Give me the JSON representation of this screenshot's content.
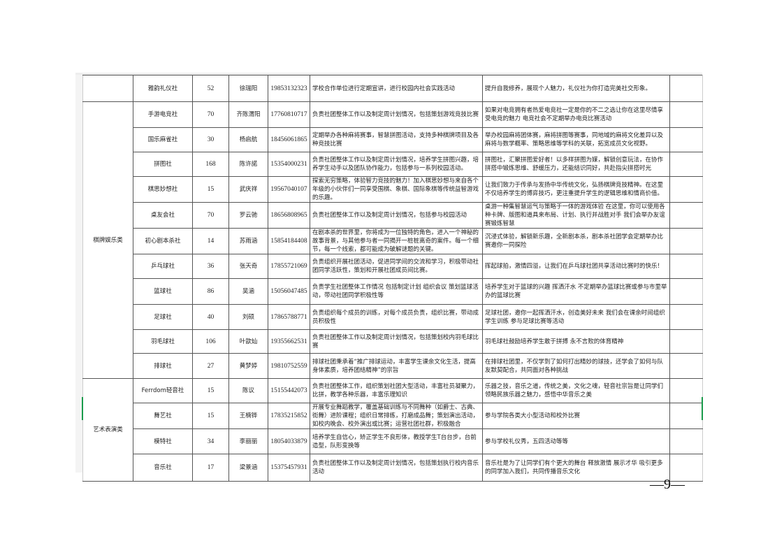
{
  "categories": [
    "",
    "棋牌娱乐类",
    "艺术表演类"
  ],
  "rows": [
    {
      "name": "雅韵礼仪社",
      "count": "52",
      "leader": "徐瑞阳",
      "phone": "19853132323",
      "duty": "学校合作单位进行定期宣讲，进行校园内社会实践活动",
      "desc": "提升自我修养，展现个人魅力，礼仪社为你打造完美社交形象。"
    },
    {
      "name": "手游电竞社",
      "count": "70",
      "leader": "齐陈渭阳",
      "phone": "17760810717",
      "duty": "负责社团整体工作以及制定周计划情况，包括策划游戏竞技比赛",
      "desc": "如果对电竞拥有者热爱电竞社一定是你的不二之选让你在这里尽情享受电竞的魅力 电竞社会不定期举办电竞比赛活动"
    },
    {
      "name": "国乐麻雀社",
      "count": "30",
      "leader": "杨启航",
      "phone": "18456061865",
      "duty": "定期举办各种麻将赛事，智慧拼图活动，支持多种棋牌项目及各种竞技比赛",
      "desc": "举办校园麻将团体赛，麻将拼图等赛事，同地域的麻将文化差异以及麻将与数学概率、策略思维等学科的关联，拓宽成员文化视野。"
    },
    {
      "name": "拼图社",
      "count": "168",
      "leader": "陈许諾",
      "phone": "15354000231",
      "duty": "负责社团整体工作以及制定周计划情况，培养学生拼图兴趣，培养学生动手以及团队协作能力，包括参与一系列校园活动。",
      "desc": "拼图社，汇聚拼图爱好者！以多样拼图为媒，解锁创意玩法，在协作拼搭中锻炼思维、舒缓压力，还能结识同好，共赴指尖拼搭时光"
    },
    {
      "name": "棋思妙想社",
      "count": "15",
      "leader": "武庆祥",
      "phone": "19567040107",
      "duty": "探索无穷策略，体验智力竞技的魅力！加入棋思妙想与来自各个年级的小伙伴们一同享受围棋、象棋、国际象棋等传统益智游戏的乐趣。",
      "desc": "让我们致力于传承与发扬中华传统文化，弘扬棋牌竞技精神。在这里不仅培养学生的博弈技巧，更注重提升学生的逻辑思维和情商价值。"
    },
    {
      "name": "桌友会社",
      "count": "70",
      "leader": "罗云驰",
      "phone": "18656808965",
      "duty": "负责社团整体工作以及制定周计划情况，包括参与校园活动",
      "desc": "桌游一种集智慧运气与策略于一体的游戏体验 在这里，你可以使用各种卡牌、版图和道具来布局、计划、执行并战胜对手 我们会举办友谊赛锻炼智慧"
    },
    {
      "name": "初心剧本杀社",
      "count": "14",
      "leader": "苏雨涵",
      "phone": "15854184408",
      "duty": "在剧本杀的世界里，你将成为一位独特的角色，进入一个神秘的故事背景，与其他参与者一同揭开一桩桩离奇的案件。每一个细节，每一个线索，都可能成为破解谜题的关键。",
      "desc": "沉浸式体验，解锁新乐趣，全新剧本杀，剧本杀社团学会定期举办比赛邀你一同探险"
    },
    {
      "name": "乒乓球社",
      "count": "36",
      "leader": "张天奇",
      "phone": "17855721069",
      "duty": "负责组织开展社团活动，促进同学间的交流和学习，积极带动社团同学活跃性，策划和开展社团成员间比赛。",
      "desc": "挥起球拍，激情四溢，让我们在乒乓球社团共享活动比赛时的快乐！"
    },
    {
      "name": "篮球社",
      "count": "86",
      "leader": "吴涵",
      "phone": "15056047485",
      "duty": "负责学生社团整体工作情况 包括制定计划 组织会议 策划篮球活动，带动社团同学积极性等",
      "desc": "培养学生对于篮球的兴趣 挥洒汗水 不定期举办篮球比赛或参与市里举办的篮球比赛"
    },
    {
      "name": "足球社",
      "count": "40",
      "leader": "刘硕",
      "phone": "17865788771",
      "duty": "负责组织每个成员的训练，对每个成员负责，组织比赛，带动成员积极性",
      "desc": "足球社团，邀你一起挥洒汗水，创造美好未来 我们会在课余时间组织学生训练 参与足球比赛等活动"
    },
    {
      "name": "羽毛球社",
      "count": "106",
      "leader": "叶歆灿",
      "phone": "19355662531",
      "duty": "负责社团整体工作以及制定周计划情况，包括策划校内羽毛球比赛",
      "desc": "羽毛球社鼓励培养学生敢于拼搏 永不言败的体育精神"
    },
    {
      "name": "排球社",
      "count": "27",
      "leader": "黄梦婷",
      "phone": "19810752559",
      "duty": "排球社团秉承着“推广排球运动，丰富学生课余文化生活，提高身体素质，培养团结精神”的宗旨",
      "desc": "在排球社团里，不仅学到了如何打出精妙的球技，还学会了如何与队友默契配合，共同面对各种挑战"
    },
    {
      "name": "Ferrdom轻音社",
      "count": "15",
      "leader": "陈议",
      "phone": "15155442073",
      "duty": "负责社团整体工作，组织策划社团大型活动，丰富社员凝聚力，比拼，教学各种乐器，丰富乐理知识",
      "desc": "乐器之技，音乐之道，传统之美，文化之魂，轻音社宗旨是让同学们领略民族乐器之魅力，感悟中华音乐之美"
    },
    {
      "name": "舞艺社",
      "count": "15",
      "leader": "王楠铧",
      "phone": "17835215852",
      "duty": "开展专业舞蹈教学，覆盖基础训练与不同舞种（如爵士、古典、街舞）进阶课程；组织日常排练，打磨成品舞；策划演出活动，如校内晚会、校外演出或比赛；运营社团社群，积极融合",
      "desc": "参与学院各类大小型活动和校外比赛"
    },
    {
      "name": "模特社",
      "count": "34",
      "leader": "李丽丽",
      "phone": "18054033879",
      "duty": "培养学生自信心，矫正学生不良形体，教授学生T台台步，台前造型，队形变换等",
      "desc": "参与学校礼仪秀，五四活动等等"
    },
    {
      "name": "音乐社",
      "count": "17",
      "leader": "梁景涵",
      "phone": "15375457931",
      "duty": "负责社团整体工作以及制定周计划情况，包括策划执行校内音乐活动",
      "desc": "音乐社是为了让同学们有个更大的舞台 释放激情 展示才华 吸引更多的同学加入我们，共同传播音乐文化"
    }
  ],
  "page_number": "—9—"
}
